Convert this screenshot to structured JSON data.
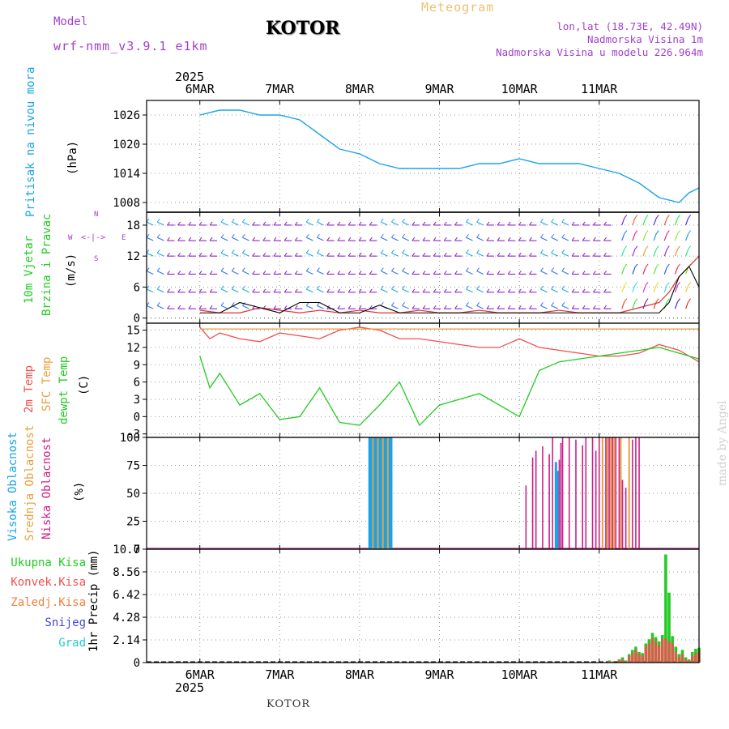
{
  "header": {
    "title": "KOTOR",
    "subtitle": "Meteogram",
    "model_label": "Model",
    "model_name": "wrf-nmm_v3.9.1 e1km",
    "coords": "lon,lat (18.73E, 42.49N)",
    "elevation": "Nadmorska Visina 1m",
    "model_elevation": "Nadmorska Visina u modelu 226.964m"
  },
  "footer": {
    "station": "KOTOR",
    "credit": "made by Angel"
  },
  "axis": {
    "year": "2025",
    "dates": [
      "6MAR",
      "7MAR",
      "8MAR",
      "9MAR",
      "10MAR",
      "11MAR"
    ]
  },
  "colors": {
    "pressure": "#1aa3e8",
    "temp2m": "#f05050",
    "sfc": "#e8a040",
    "dewpt": "#22cc22",
    "high_cloud": "#1aa3e8",
    "mid_cloud": "#e8a040",
    "low_cloud": "#cc2288",
    "wind_gust": "#000000",
    "precip_total": "#22cc22",
    "precip_conv": "#f05050"
  },
  "chart_data": [
    {
      "type": "line",
      "ylabel_main": "Pritisak na nivou mora",
      "ylabel_unit": "(hPa)",
      "yticks": [
        1008,
        1014,
        1020,
        1026
      ],
      "ylim": [
        1006,
        1029
      ],
      "x_hours": [
        0,
        6,
        12,
        18,
        24,
        30,
        36,
        42,
        48,
        54,
        60,
        66,
        72,
        78,
        84,
        90,
        96,
        102,
        108,
        114,
        120,
        126,
        132,
        138,
        144,
        147,
        150
      ],
      "series": [
        {
          "values": [
            1026,
            1027,
            1027,
            1026,
            1026,
            1025,
            1022,
            1019,
            1018,
            1016,
            1015,
            1015,
            1015,
            1015,
            1016,
            1016,
            1017,
            1016,
            1016,
            1016,
            1015,
            1014,
            1012,
            1009,
            1008,
            1010,
            1011
          ]
        }
      ]
    },
    {
      "type": "line",
      "ylabel_main_1": "10m Vjetar",
      "ylabel_main_2": "Brzina i Pravac",
      "ylabel_unit": "(m/s)",
      "compass": {
        "north": "N",
        "west": "W",
        "east": "E",
        "south": "S"
      },
      "yticks": [
        0,
        6,
        12,
        18
      ],
      "ylim": [
        -1,
        20.5
      ],
      "x_hours": [
        0,
        6,
        12,
        18,
        24,
        30,
        36,
        42,
        48,
        54,
        60,
        66,
        72,
        78,
        84,
        90,
        96,
        102,
        108,
        114,
        120,
        126,
        132,
        138,
        141,
        144,
        147,
        150
      ],
      "series": [
        {
          "values": [
            1.5,
            1,
            1,
            2,
            1.5,
            1,
            1.5,
            1,
            1.5,
            1,
            1,
            1.5,
            1,
            1,
            1.5,
            1,
            1,
            1,
            1.5,
            1,
            1,
            1,
            2,
            3,
            5,
            8,
            10,
            12
          ]
        },
        {
          "values": [
            1,
            1,
            3,
            2,
            1,
            3,
            3,
            1,
            1,
            2.5,
            1,
            1,
            1,
            1,
            1,
            1,
            1,
            1,
            1,
            1,
            1,
            1,
            1,
            1,
            3,
            8,
            10,
            6
          ]
        }
      ]
    },
    {
      "type": "line",
      "ylabel_1": "2m Temp",
      "ylabel_2": "SFC Temp",
      "ylabel_3": "dewpt Temp",
      "ylabel_unit": "(C)",
      "yticks": [
        -3,
        0,
        3,
        6,
        9,
        12,
        15
      ],
      "ylim": [
        -3.6,
        16.2
      ],
      "x_hours": [
        0,
        3,
        6,
        12,
        18,
        24,
        30,
        36,
        42,
        48,
        54,
        60,
        66,
        72,
        78,
        84,
        90,
        96,
        102,
        108,
        114,
        120,
        126,
        132,
        138,
        144,
        147,
        150
      ],
      "series": [
        {
          "values": [
            15.5,
            13.5,
            14.5,
            13.5,
            13,
            14.5,
            14,
            13.5,
            15,
            15.5,
            15,
            13.5,
            13.5,
            13,
            12.5,
            12,
            12,
            13.5,
            12,
            11.5,
            11,
            10.5,
            10.5,
            11,
            12.5,
            11.5,
            10.5,
            9.5
          ]
        },
        {
          "values": [
            15.2,
            15.2,
            15.2,
            15.2,
            15.2,
            15.2,
            15.2,
            15.2,
            15.2,
            15.2,
            15.2,
            15.2,
            15.2,
            15.2,
            15.2,
            15.2,
            15.2,
            15.2,
            15.2,
            15.2,
            15.2,
            15.2,
            15.2,
            15.2,
            15.2,
            15.2,
            15.2,
            15.2
          ]
        },
        {
          "values": [
            10.5,
            5,
            7.5,
            2,
            4,
            -0.5,
            0,
            5,
            -1,
            -1.5,
            2,
            6,
            -1.5,
            2,
            3,
            4,
            2,
            0,
            8,
            9.5,
            10,
            10.5,
            11,
            11.5,
            12,
            11,
            10.5,
            10
          ]
        }
      ]
    },
    {
      "type": "bar",
      "ylabel_1": "Visoka Oblacnost",
      "ylabel_2": "Srednja Oblacnost",
      "ylabel_3": "Niska Oblacnost",
      "ylabel_unit": "(%)",
      "yticks": [
        0,
        25,
        50,
        75,
        100
      ],
      "ylim": [
        0,
        100
      ],
      "bar_hours": [
        51,
        51.5,
        52,
        52.5,
        53,
        53.5,
        54,
        54.5,
        55,
        55.5,
        56,
        56.5,
        57,
        57.5,
        98,
        100,
        101,
        103,
        105,
        106,
        107,
        107.5,
        108,
        108.5,
        109,
        111,
        113,
        115,
        116,
        118,
        119,
        120,
        121,
        122,
        122.5,
        123,
        123.5,
        124,
        124.5,
        125,
        126,
        126.5,
        127,
        128,
        129,
        130,
        131,
        132
      ],
      "series": [
        {
          "values": [
            100,
            100,
            0,
            100,
            100,
            0,
            100,
            100,
            0,
            100,
            100,
            0,
            100,
            100,
            0,
            0,
            0,
            0,
            0,
            0,
            78,
            70,
            0,
            0,
            0,
            0,
            0,
            0,
            0,
            0,
            0,
            0,
            0,
            0,
            0,
            0,
            0,
            0,
            0,
            0,
            0,
            0,
            0,
            0,
            0,
            0,
            0,
            0
          ]
        },
        {
          "values": [
            0,
            0,
            100,
            0,
            0,
            100,
            0,
            0,
            100,
            0,
            0,
            100,
            0,
            0,
            0,
            0,
            0,
            0,
            0,
            0,
            0,
            0,
            0,
            0,
            0,
            0,
            0,
            0,
            0,
            0,
            0,
            0,
            100,
            0,
            100,
            0,
            100,
            0,
            100,
            0,
            0,
            100,
            0,
            0,
            100,
            0,
            0,
            0
          ]
        },
        {
          "values": [
            0,
            0,
            0,
            0,
            0,
            0,
            0,
            0,
            0,
            0,
            0,
            0,
            0,
            0,
            57,
            82,
            88,
            92,
            85,
            100,
            0,
            0,
            80,
            95,
            100,
            100,
            98,
            93,
            100,
            100,
            88,
            100,
            0,
            100,
            0,
            100,
            0,
            100,
            0,
            100,
            100,
            0,
            62,
            55,
            0,
            98,
            100,
            100
          ]
        }
      ]
    },
    {
      "type": "bar",
      "legend": [
        "Ukupna Kisa",
        "Konvek.Kisa",
        "Zaledj.Kisa",
        "Snijeg",
        "Grad"
      ],
      "ylabel": "1hr Precip (mm)",
      "yticks": [
        "0",
        "2.14",
        "4.28",
        "6.42",
        "8.56",
        "10.7"
      ],
      "ylim": [
        0,
        10.7
      ],
      "bar_hours": [
        123,
        124,
        125,
        126,
        127,
        128,
        129,
        130,
        131,
        132,
        133,
        134,
        135,
        136,
        137,
        138,
        139,
        140,
        141,
        142,
        143,
        144,
        145,
        146,
        147,
        148,
        149,
        150
      ],
      "series": [
        {
          "values": [
            0.2,
            0.1,
            0,
            0.3,
            0.5,
            0.2,
            0.8,
            1.2,
            1.5,
            1.0,
            0.9,
            1.8,
            2.2,
            2.8,
            2.4,
            2.0,
            2.6,
            10.2,
            6.6,
            2.5,
            1.5,
            0.8,
            1.2,
            0.5,
            0.3,
            1.0,
            1.3,
            1.4
          ]
        },
        {
          "values": [
            0.1,
            0.1,
            0,
            0.2,
            0.3,
            0.1,
            0.6,
            0.9,
            1.2,
            0.8,
            0.7,
            1.5,
            1.8,
            2.3,
            2.0,
            1.6,
            2.2,
            2.3,
            2.0,
            1.8,
            1.0,
            0.5,
            0.8,
            0.3,
            0.2,
            0.6,
            0.9,
            1.0
          ]
        }
      ]
    }
  ]
}
